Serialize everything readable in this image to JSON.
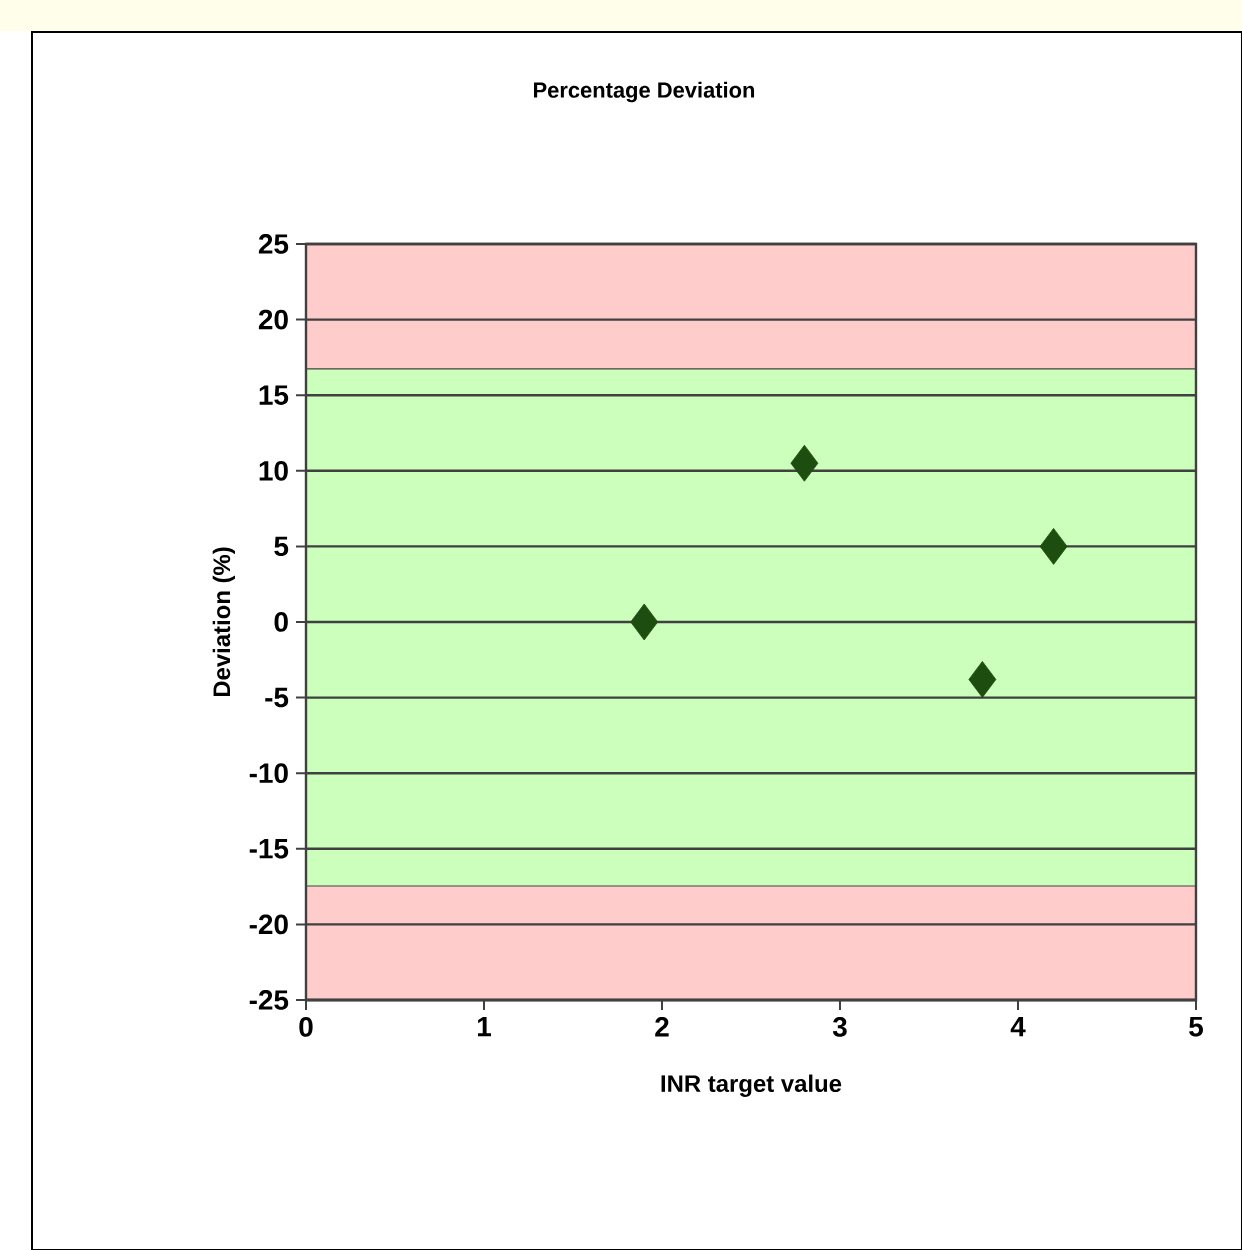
{
  "chart_data": {
    "type": "scatter",
    "title": "Percentage Deviation",
    "xlabel": "INR target value",
    "ylabel": "Deviation (%)",
    "x": [
      1.9,
      2.8,
      3.8,
      4.2
    ],
    "values": [
      0,
      10.5,
      -3.8,
      5
    ],
    "color": "#1e4d10",
    "marker": "diamond",
    "xlim": [
      0,
      5
    ],
    "ylim": [
      -25,
      25
    ],
    "xticks": [
      0,
      1,
      2,
      3,
      4,
      5
    ],
    "yticks": [
      -25,
      -20,
      -15,
      -10,
      -5,
      0,
      5,
      10,
      15,
      20,
      25
    ],
    "grid": "y",
    "bands": [
      {
        "axis": "y",
        "from": 16.7,
        "to": 25,
        "color": "#ffcccc"
      },
      {
        "axis": "y",
        "from": -17.5,
        "to": 16.7,
        "color": "#ccffbb"
      },
      {
        "axis": "y",
        "from": -25,
        "to": -17.5,
        "color": "#ffcccc"
      }
    ]
  }
}
